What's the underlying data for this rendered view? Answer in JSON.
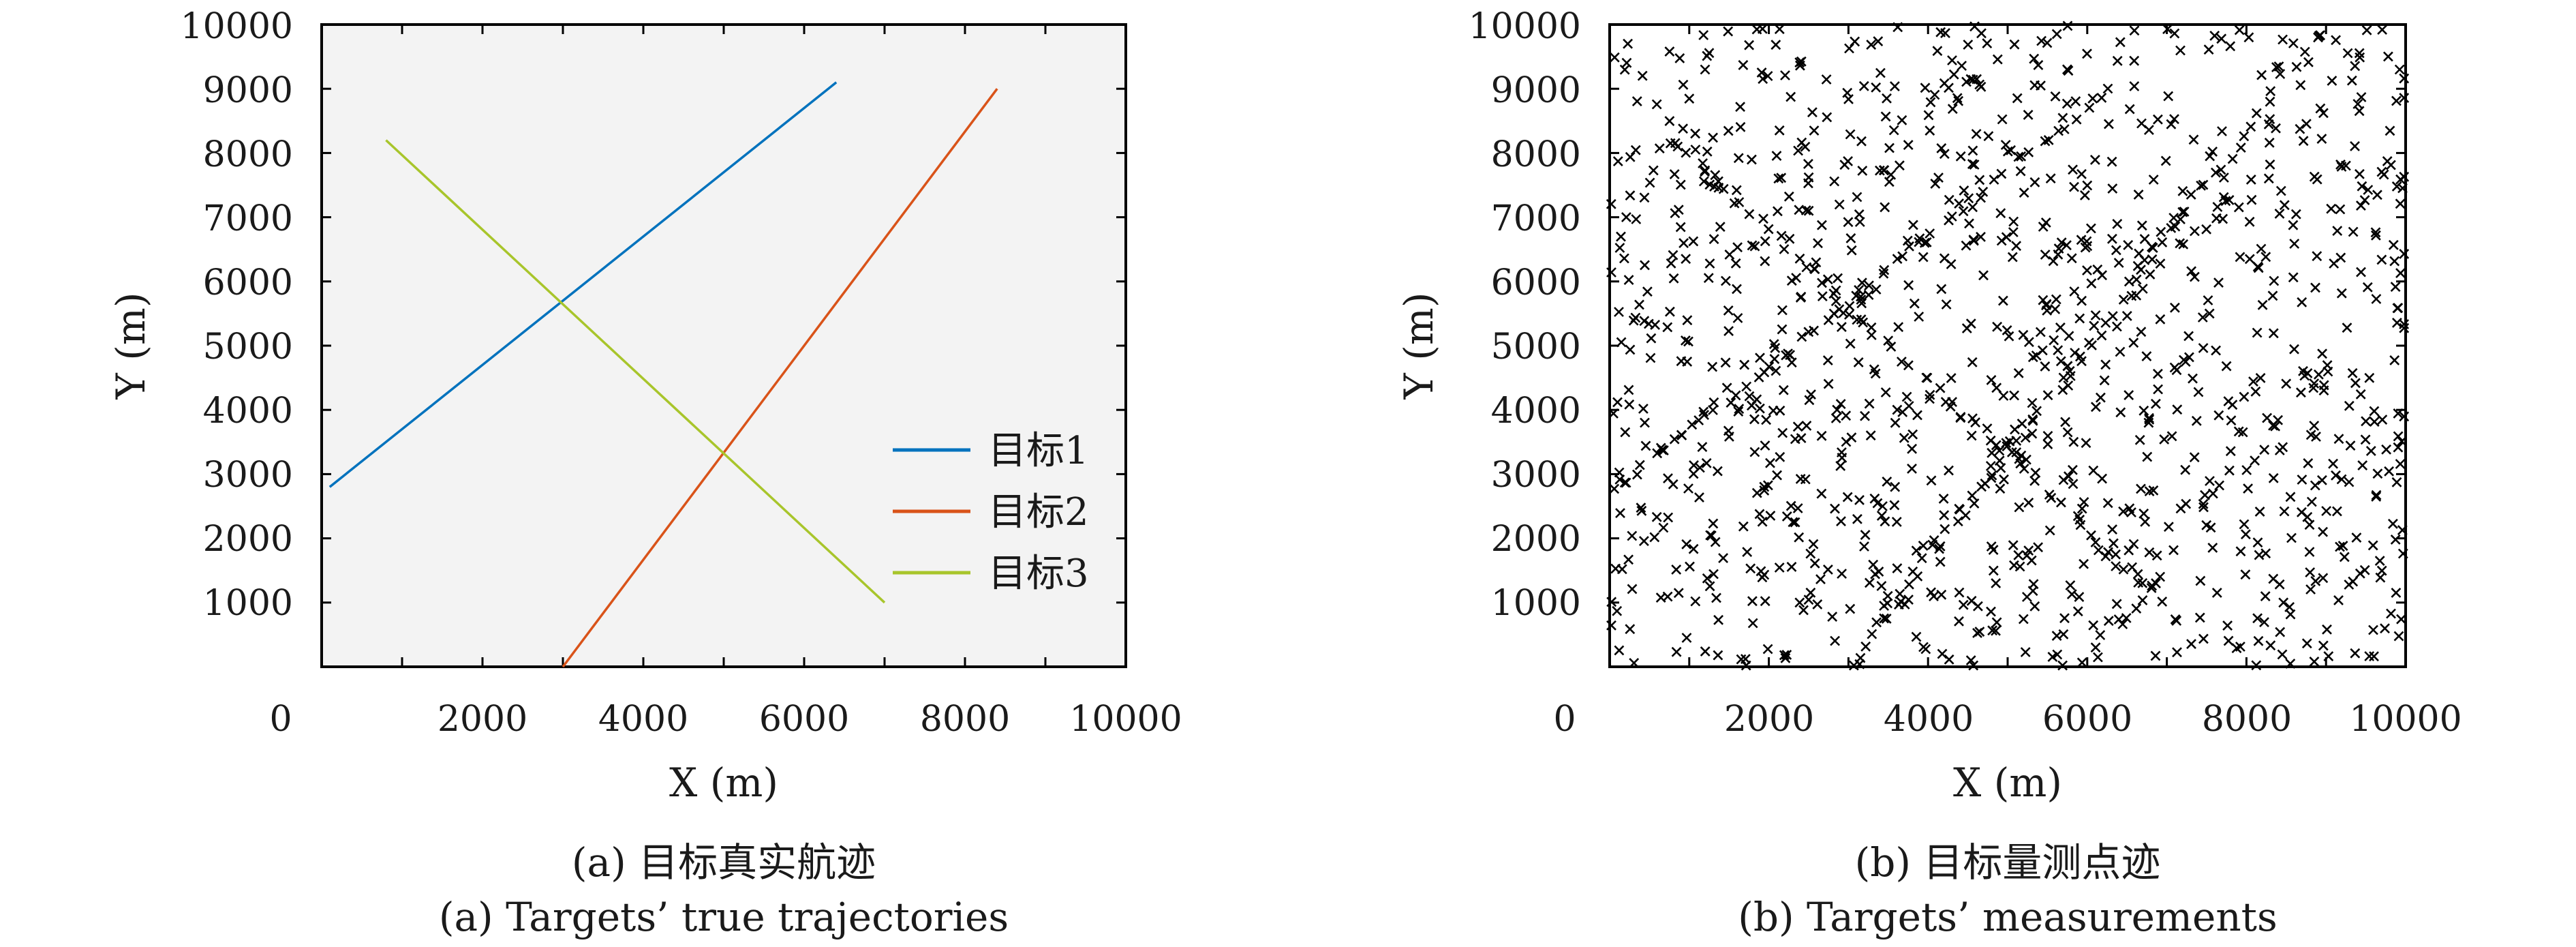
{
  "chart_data": [
    {
      "type": "line",
      "title": "",
      "xlabel": "X (m)",
      "ylabel": "Y (m)",
      "xlim": [
        0,
        10000
      ],
      "ylim": [
        0,
        10000
      ],
      "x_tick_labels": [
        "0",
        "2000",
        "4000",
        "6000",
        "8000",
        "10000"
      ],
      "y_tick_labels": [
        "1000",
        "2000",
        "3000",
        "4000",
        "5000",
        "6000",
        "7000",
        "8000",
        "9000",
        "10000"
      ],
      "grid": false,
      "legend_position": "lower-right",
      "series": [
        {
          "name": "目标1",
          "color": "#0072BD",
          "x": [
            100,
            6400
          ],
          "y": [
            2800,
            9100
          ]
        },
        {
          "name": "目标2",
          "color": "#D95319",
          "x": [
            3000,
            8400
          ],
          "y": [
            0,
            9000
          ]
        },
        {
          "name": "目标3",
          "color": "#A8C52B",
          "x": [
            800,
            7000
          ],
          "y": [
            8200,
            1000
          ]
        }
      ],
      "caption_cn": "(a) 目标真实航迹",
      "caption_en": "(a) Targets’ true trajectories"
    },
    {
      "type": "scatter",
      "title": "",
      "xlabel": "X (m)",
      "ylabel": "Y (m)",
      "xlim": [
        0,
        10000
      ],
      "ylim": [
        0,
        10000
      ],
      "x_tick_labels": [
        "0",
        "2000",
        "4000",
        "6000",
        "8000",
        "10000"
      ],
      "y_tick_labels": [
        "1000",
        "2000",
        "3000",
        "4000",
        "5000",
        "6000",
        "7000",
        "8000",
        "9000",
        "10000"
      ],
      "grid": false,
      "marker": "x",
      "marker_color": "#000000",
      "clutter_points": 1100,
      "caption_cn": "(b) 目标量测点迹",
      "caption_en": "(b) Targets’ measurements"
    }
  ]
}
